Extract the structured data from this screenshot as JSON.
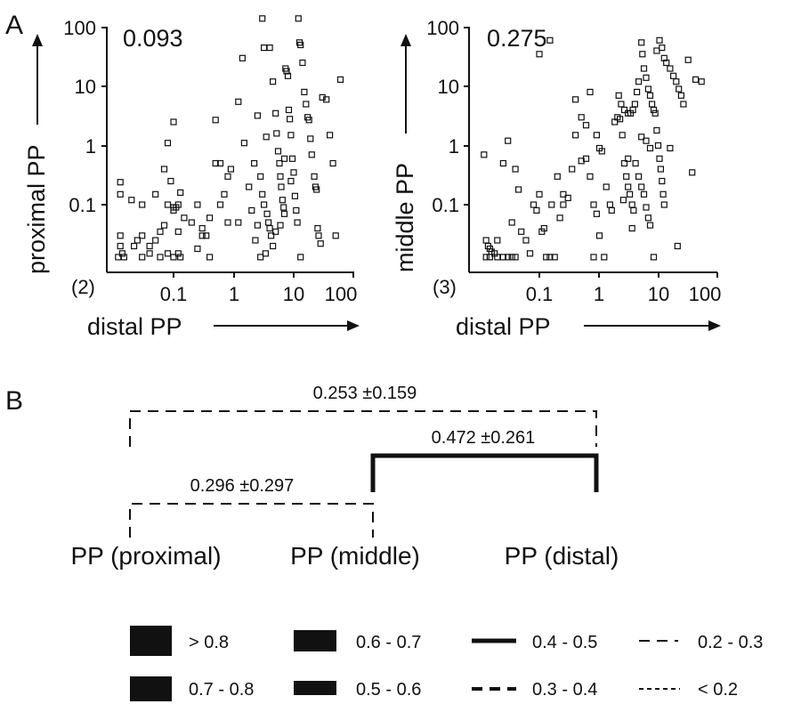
{
  "panel_a": {
    "letter": "A",
    "plots": [
      {
        "corr": "0.093",
        "count": "(2)",
        "ylabel": "proximal PP",
        "xlabel": "distal PP"
      },
      {
        "corr": "0.275",
        "count": "(3)",
        "ylabel": "middle PP",
        "xlabel": "distal PP"
      }
    ],
    "y_ticks": [
      "100",
      "10",
      "1",
      "0.1"
    ],
    "x_ticks": [
      "0.1",
      "1",
      "10",
      "100"
    ]
  },
  "chart_data": [
    {
      "type": "scatter",
      "title": "",
      "xlabel": "distal PP",
      "ylabel": "proximal PP",
      "x_scale": "log",
      "y_scale": "log",
      "xlim": [
        0.012,
        100
      ],
      "ylim": [
        0.012,
        100
      ],
      "annotation": "0.093",
      "zero_count_label": "(2)",
      "points": [
        [
          0.013,
          0.24
        ],
        [
          0.013,
          0.15
        ],
        [
          0.013,
          0.03
        ],
        [
          0.013,
          0.02
        ],
        [
          0.014,
          0.015
        ],
        [
          0.012,
          0.013
        ],
        [
          0.015,
          0.013
        ],
        [
          0.02,
          0.12
        ],
        [
          0.03,
          0.1
        ],
        [
          0.025,
          0.025
        ],
        [
          0.022,
          0.02
        ],
        [
          0.03,
          0.03
        ],
        [
          0.04,
          0.02
        ],
        [
          0.05,
          0.15
        ],
        [
          0.05,
          0.025
        ],
        [
          0.06,
          0.035
        ],
        [
          0.04,
          0.015
        ],
        [
          0.03,
          0.013
        ],
        [
          0.06,
          0.013
        ],
        [
          0.08,
          0.1
        ],
        [
          0.07,
          0.045
        ],
        [
          0.08,
          0.015
        ],
        [
          0.07,
          0.4
        ],
        [
          0.09,
          0.25
        ],
        [
          0.1,
          0.08
        ],
        [
          0.1,
          0.09
        ],
        [
          0.11,
          0.09
        ],
        [
          0.12,
          0.1
        ],
        [
          0.13,
          0.16
        ],
        [
          0.1,
          2.5
        ],
        [
          0.08,
          1.1
        ],
        [
          0.15,
          0.06
        ],
        [
          0.12,
          0.035
        ],
        [
          0.12,
          0.015
        ],
        [
          0.1,
          0.013
        ],
        [
          0.13,
          0.013
        ],
        [
          0.2,
          0.05
        ],
        [
          0.25,
          0.1
        ],
        [
          0.3,
          0.04
        ],
        [
          0.3,
          0.03
        ],
        [
          0.35,
          0.03
        ],
        [
          0.25,
          0.018
        ],
        [
          0.4,
          0.06
        ],
        [
          0.4,
          0.013
        ],
        [
          0.5,
          2.7
        ],
        [
          0.5,
          0.5
        ],
        [
          0.6,
          0.5
        ],
        [
          0.6,
          0.1
        ],
        [
          0.7,
          0.15
        ],
        [
          0.8,
          0.05
        ],
        [
          1.2,
          0.05
        ],
        [
          0.9,
          0.4
        ],
        [
          0.8,
          0.3
        ],
        [
          1.2,
          5.5
        ],
        [
          1.4,
          30
        ],
        [
          1.5,
          1.1
        ],
        [
          1.8,
          0.2
        ],
        [
          2.0,
          0.08
        ],
        [
          2.2,
          0.5
        ],
        [
          2.5,
          3.2
        ],
        [
          2.8,
          0.3
        ],
        [
          3.0,
          140
        ],
        [
          3.2,
          45
        ],
        [
          3.5,
          1.4
        ],
        [
          3.0,
          0.15
        ],
        [
          3.2,
          0.1
        ],
        [
          3.6,
          0.07
        ],
        [
          3.8,
          0.05
        ],
        [
          4.0,
          0.04
        ],
        [
          4.2,
          0.03
        ],
        [
          4.5,
          0.02
        ],
        [
          3.4,
          0.015
        ],
        [
          4.0,
          45
        ],
        [
          4.5,
          12
        ],
        [
          5.0,
          3.5
        ],
        [
          5.2,
          1.6
        ],
        [
          5.5,
          0.8
        ],
        [
          5.8,
          0.5
        ],
        [
          6.0,
          0.3
        ],
        [
          6.2,
          0.2
        ],
        [
          6.5,
          0.12
        ],
        [
          6.8,
          0.09
        ],
        [
          7.0,
          0.07
        ],
        [
          7.3,
          20
        ],
        [
          7.6,
          18
        ],
        [
          8.0,
          15
        ],
        [
          8.3,
          4
        ],
        [
          8.6,
          2.8
        ],
        [
          9.0,
          1.5
        ],
        [
          9.5,
          0.6
        ],
        [
          10,
          0.35
        ],
        [
          10.5,
          0.14
        ],
        [
          11,
          0.08
        ],
        [
          11.5,
          0.05
        ],
        [
          12,
          140
        ],
        [
          12.5,
          55
        ],
        [
          13,
          50
        ],
        [
          14,
          25
        ],
        [
          15,
          8
        ],
        [
          16,
          5
        ],
        [
          17,
          3
        ],
        [
          18,
          2.7
        ],
        [
          19,
          1.3
        ],
        [
          20,
          0.7
        ],
        [
          22,
          0.3
        ],
        [
          23,
          0.2
        ],
        [
          24,
          0.18
        ],
        [
          25,
          0.04
        ],
        [
          26,
          0.03
        ],
        [
          28,
          0.022
        ],
        [
          30,
          6.5
        ],
        [
          35,
          6
        ],
        [
          40,
          1.5
        ],
        [
          45,
          0.5
        ],
        [
          50,
          0.03
        ],
        [
          60,
          13
        ],
        [
          7,
          0.6
        ],
        [
          9,
          0.25
        ],
        [
          6,
          0.045
        ],
        [
          5,
          0.035
        ],
        [
          2.5,
          0.045
        ],
        [
          2.3,
          0.025
        ],
        [
          2.8,
          0.013
        ],
        [
          13,
          0.013
        ]
      ]
    },
    {
      "type": "scatter",
      "title": "",
      "xlabel": "distal PP",
      "ylabel": "middle PP",
      "x_scale": "log",
      "y_scale": "log",
      "xlim": [
        0.012,
        100
      ],
      "ylim": [
        0.012,
        100
      ],
      "annotation": "0.275",
      "zero_count_label": "(3)",
      "points": [
        [
          0.012,
          0.7
        ],
        [
          0.013,
          0.025
        ],
        [
          0.014,
          0.02
        ],
        [
          0.015,
          0.018
        ],
        [
          0.016,
          0.016
        ],
        [
          0.018,
          0.015
        ],
        [
          0.02,
          0.025
        ],
        [
          0.013,
          0.013
        ],
        [
          0.015,
          0.013
        ],
        [
          0.02,
          0.013
        ],
        [
          0.025,
          0.013
        ],
        [
          0.03,
          0.013
        ],
        [
          0.035,
          0.013
        ],
        [
          0.04,
          0.013
        ],
        [
          0.03,
          1.2
        ],
        [
          0.025,
          0.5
        ],
        [
          0.04,
          0.4
        ],
        [
          0.045,
          0.18
        ],
        [
          0.035,
          0.05
        ],
        [
          0.05,
          0.035
        ],
        [
          0.06,
          0.025
        ],
        [
          0.07,
          0.015
        ],
        [
          0.08,
          0.1
        ],
        [
          0.09,
          0.08
        ],
        [
          0.1,
          0.15
        ],
        [
          0.11,
          0.035
        ],
        [
          0.12,
          0.04
        ],
        [
          0.13,
          0.013
        ],
        [
          0.15,
          0.013
        ],
        [
          0.18,
          0.013
        ],
        [
          0.1,
          35
        ],
        [
          0.15,
          60
        ],
        [
          0.16,
          0.1
        ],
        [
          0.2,
          0.3
        ],
        [
          0.22,
          0.06
        ],
        [
          0.25,
          0.15
        ],
        [
          0.25,
          0.1
        ],
        [
          0.3,
          0.13
        ],
        [
          0.35,
          0.4
        ],
        [
          0.4,
          1.5
        ],
        [
          0.5,
          0.55
        ],
        [
          0.6,
          0.6
        ],
        [
          0.7,
          0.3
        ],
        [
          0.8,
          0.1
        ],
        [
          0.9,
          0.07
        ],
        [
          1.0,
          0.03
        ],
        [
          1.2,
          0.013
        ],
        [
          0.8,
          0.013
        ],
        [
          0.4,
          6
        ],
        [
          0.5,
          3
        ],
        [
          0.6,
          2.2
        ],
        [
          0.7,
          8
        ],
        [
          0.9,
          1.5
        ],
        [
          1.0,
          0.9
        ],
        [
          1.1,
          0.8
        ],
        [
          1.3,
          0.2
        ],
        [
          1.5,
          0.1
        ],
        [
          1.6,
          0.08
        ],
        [
          1.8,
          2.5
        ],
        [
          2.0,
          3
        ],
        [
          2.2,
          2.8
        ],
        [
          2.4,
          1.5
        ],
        [
          2.6,
          0.5
        ],
        [
          2.8,
          0.3
        ],
        [
          3.0,
          0.2
        ],
        [
          3.2,
          0.15
        ],
        [
          3.5,
          0.1
        ],
        [
          3.7,
          0.08
        ],
        [
          2.1,
          7
        ],
        [
          2.3,
          5
        ],
        [
          2.6,
          4
        ],
        [
          3.0,
          3.5
        ],
        [
          3.3,
          3.5
        ],
        [
          3.6,
          4
        ],
        [
          3.9,
          5
        ],
        [
          4.2,
          8
        ],
        [
          4.5,
          12
        ],
        [
          5.0,
          55
        ],
        [
          5.2,
          35
        ],
        [
          5.5,
          20
        ],
        [
          6,
          14
        ],
        [
          6.5,
          9
        ],
        [
          7,
          7
        ],
        [
          7.5,
          5
        ],
        [
          8,
          4
        ],
        [
          8.5,
          3.5
        ],
        [
          9,
          1.8
        ],
        [
          9.5,
          1
        ],
        [
          10,
          0.6
        ],
        [
          10.5,
          0.4
        ],
        [
          11,
          0.25
        ],
        [
          11.5,
          0.15
        ],
        [
          12,
          0.1
        ],
        [
          4,
          0.5
        ],
        [
          4.5,
          0.3
        ],
        [
          5,
          0.2
        ],
        [
          5.5,
          0.15
        ],
        [
          6,
          0.09
        ],
        [
          6.5,
          0.06
        ],
        [
          7,
          0.045
        ],
        [
          9,
          40
        ],
        [
          10,
          60
        ],
        [
          11,
          45
        ],
        [
          12,
          30
        ],
        [
          13,
          25
        ],
        [
          15,
          20
        ],
        [
          17,
          15
        ],
        [
          19,
          12
        ],
        [
          21,
          9
        ],
        [
          23,
          7
        ],
        [
          25,
          5
        ],
        [
          8,
          0.013
        ],
        [
          30,
          28
        ],
        [
          35,
          0.35
        ],
        [
          40,
          13
        ],
        [
          50,
          12
        ],
        [
          20,
          0.02
        ],
        [
          15,
          0.9
        ],
        [
          3,
          0.6
        ],
        [
          3.5,
          0.04
        ],
        [
          2.5,
          0.12
        ],
        [
          5,
          1.4
        ],
        [
          6,
          1.2
        ],
        [
          7,
          0.9
        ]
      ]
    }
  ],
  "panel_b": {
    "letter": "B",
    "links": [
      {
        "label": "0.253 ±0.159",
        "from": "proximal",
        "to": "distal",
        "style": "dashed"
      },
      {
        "label": "0.472 ±0.261",
        "from": "middle",
        "to": "distal",
        "style": "solid"
      },
      {
        "label": "0.296 ±0.297",
        "from": "proximal",
        "to": "middle",
        "style": "dashed"
      }
    ],
    "nodes": [
      "PP (proximal)",
      "PP (middle)",
      "PP (distal)"
    ],
    "legend": [
      {
        "label": "> 0.8",
        "level": 0.9
      },
      {
        "label": "0.7 - 0.8",
        "level": 0.75
      },
      {
        "label": "0.6 - 0.7",
        "level": 0.65
      },
      {
        "label": "0.5 - 0.6",
        "level": 0.55
      },
      {
        "label": "0.4 - 0.5",
        "level": 0.45
      },
      {
        "label": "0.3 - 0.4",
        "level": 0.35
      },
      {
        "label": "0.2 - 0.3",
        "level": 0.25
      },
      {
        "label": "< 0.2",
        "level": 0.1
      }
    ]
  }
}
